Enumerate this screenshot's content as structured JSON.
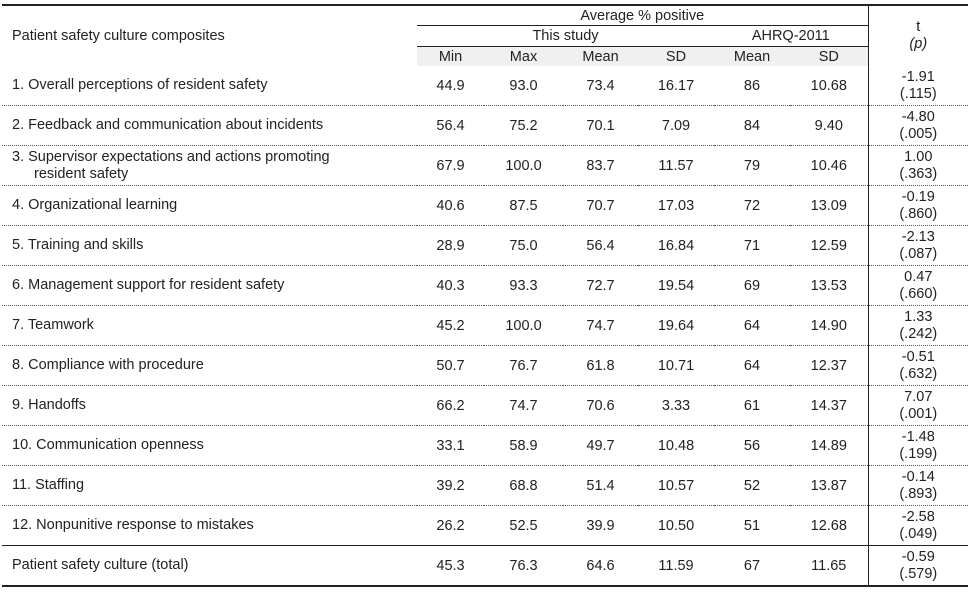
{
  "header": {
    "composites_label": "Patient safety culture composites",
    "average_label": "Average % positive",
    "this_study_label": "This study",
    "ahrq_label": "AHRQ-2011",
    "t_label": "t",
    "p_label": "(p)",
    "subcols": [
      "Min",
      "Max",
      "Mean",
      "SD",
      "Mean",
      "SD"
    ]
  },
  "rows": [
    {
      "name": "1. Overall perceptions of resident safety",
      "min": "44.9",
      "max": "93.0",
      "mean": "73.4",
      "sd": "16.17",
      "ahrq_mean": "86",
      "ahrq_sd": "10.68",
      "t": "-1.91",
      "p": "(.115)"
    },
    {
      "name": "2. Feedback and communication about incidents",
      "min": "56.4",
      "max": "75.2",
      "mean": "70.1",
      "sd": "7.09",
      "ahrq_mean": "84",
      "ahrq_sd": "9.40",
      "t": "-4.80",
      "p": "(.005)"
    },
    {
      "name": "3. Supervisor expectations and actions promoting",
      "name2": "resident safety",
      "min": "67.9",
      "max": "100.0",
      "mean": "83.7",
      "sd": "11.57",
      "ahrq_mean": "79",
      "ahrq_sd": "10.46",
      "t": "1.00",
      "p": "(.363)"
    },
    {
      "name": "4. Organizational learning",
      "min": "40.6",
      "max": "87.5",
      "mean": "70.7",
      "sd": "17.03",
      "ahrq_mean": "72",
      "ahrq_sd": "13.09",
      "t": "-0.19",
      "p": "(.860)"
    },
    {
      "name": "5. Training and skills",
      "min": "28.9",
      "max": "75.0",
      "mean": "56.4",
      "sd": "16.84",
      "ahrq_mean": "71",
      "ahrq_sd": "12.59",
      "t": "-2.13",
      "p": "(.087)"
    },
    {
      "name": "6. Management support for resident safety",
      "min": "40.3",
      "max": "93.3",
      "mean": "72.7",
      "sd": "19.54",
      "ahrq_mean": "69",
      "ahrq_sd": "13.53",
      "t": "0.47",
      "p": "(.660)"
    },
    {
      "name": "7. Teamwork",
      "min": "45.2",
      "max": "100.0",
      "mean": "74.7",
      "sd": "19.64",
      "ahrq_mean": "64",
      "ahrq_sd": "14.90",
      "t": "1.33",
      "p": "(.242)"
    },
    {
      "name": "8. Compliance with procedure",
      "min": "50.7",
      "max": "76.7",
      "mean": "61.8",
      "sd": "10.71",
      "ahrq_mean": "64",
      "ahrq_sd": "12.37",
      "t": "-0.51",
      "p": "(.632)"
    },
    {
      "name": "9. Handoffs",
      "min": "66.2",
      "max": "74.7",
      "mean": "70.6",
      "sd": "3.33",
      "ahrq_mean": "61",
      "ahrq_sd": "14.37",
      "t": "7.07",
      "p": "(.001)"
    },
    {
      "name": "10. Communication openness",
      "min": "33.1",
      "max": "58.9",
      "mean": "49.7",
      "sd": "10.48",
      "ahrq_mean": "56",
      "ahrq_sd": "14.89",
      "t": "-1.48",
      "p": "(.199)"
    },
    {
      "name": "11. Staffing",
      "min": "39.2",
      "max": "68.8",
      "mean": "51.4",
      "sd": "10.57",
      "ahrq_mean": "52",
      "ahrq_sd": "13.87",
      "t": "-0.14",
      "p": "(.893)"
    },
    {
      "name": "12. Nonpunitive response to mistakes",
      "min": "26.2",
      "max": "52.5",
      "mean": "39.9",
      "sd": "10.50",
      "ahrq_mean": "51",
      "ahrq_sd": "12.68",
      "t": "-2.58",
      "p": "(.049)"
    }
  ],
  "total": {
    "name": "Patient safety culture (total)",
    "min": "45.3",
    "max": "76.3",
    "mean": "64.6",
    "sd": "11.59",
    "ahrq_mean": "67",
    "ahrq_sd": "11.65",
    "t": "-0.59",
    "p": "(.579)"
  }
}
